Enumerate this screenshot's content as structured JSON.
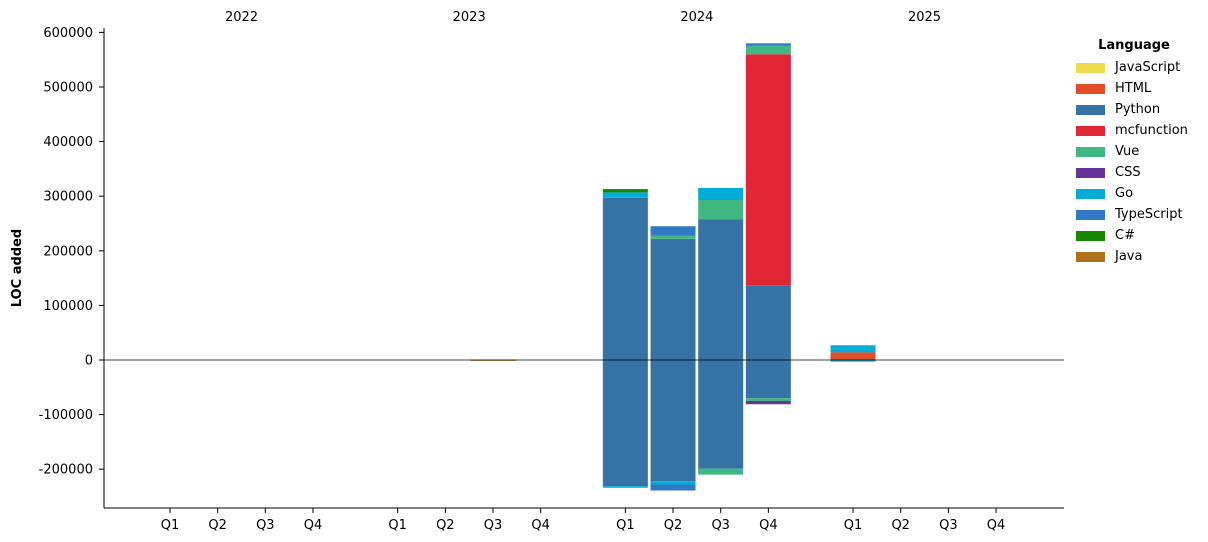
{
  "chart_data": {
    "type": "bar",
    "stacked": true,
    "ylabel": "LOC added",
    "ylim": [
      -270000,
      610000
    ],
    "yticks": [
      600000,
      500000,
      400000,
      300000,
      200000,
      100000,
      0,
      -100000,
      -200000
    ],
    "years": [
      "2022",
      "2023",
      "2024",
      "2025"
    ],
    "quarters": [
      "Q1",
      "Q2",
      "Q3",
      "Q4"
    ],
    "legend_title": "Language",
    "legend_position": "top-right, outside plot",
    "series": [
      {
        "name": "JavaScript",
        "color": "#f0db4f"
      },
      {
        "name": "HTML",
        "color": "#e34c26"
      },
      {
        "name": "Python",
        "color": "#3572a5"
      },
      {
        "name": "mcfunction",
        "color": "#e32636"
      },
      {
        "name": "Vue",
        "color": "#41b883"
      },
      {
        "name": "CSS",
        "color": "#663399"
      },
      {
        "name": "Go",
        "color": "#00add8"
      },
      {
        "name": "TypeScript",
        "color": "#3178c6"
      },
      {
        "name": "C#",
        "color": "#178600"
      },
      {
        "name": "Java",
        "color": "#b07219"
      }
    ],
    "bars": [
      {
        "year": "2023",
        "quarter": "Q3",
        "positive": [
          {
            "series": "Java",
            "value": 800
          }
        ],
        "negative": [
          {
            "series": "Java",
            "value": -800
          }
        ]
      },
      {
        "year": "2024",
        "quarter": "Q1",
        "positive": [
          {
            "series": "Python",
            "value": 297000
          },
          {
            "series": "Go",
            "value": 10000
          },
          {
            "series": "C#",
            "value": 6000
          }
        ],
        "negative": [
          {
            "series": "Python",
            "value": -231000
          },
          {
            "series": "Go",
            "value": -3000
          }
        ]
      },
      {
        "year": "2024",
        "quarter": "Q2",
        "positive": [
          {
            "series": "Python",
            "value": 222000
          },
          {
            "series": "Vue",
            "value": 6000
          },
          {
            "series": "TypeScript",
            "value": 17000
          }
        ],
        "negative": [
          {
            "series": "Python",
            "value": -222000
          },
          {
            "series": "Go",
            "value": -6000
          },
          {
            "series": "TypeScript",
            "value": -11000
          }
        ]
      },
      {
        "year": "2024",
        "quarter": "Q3",
        "positive": [
          {
            "series": "Python",
            "value": 258000
          },
          {
            "series": "Vue",
            "value": 35000
          },
          {
            "series": "Go",
            "value": 22000
          }
        ],
        "negative": [
          {
            "series": "Python",
            "value": -199000
          },
          {
            "series": "Vue",
            "value": -11000
          }
        ]
      },
      {
        "year": "2024",
        "quarter": "Q4",
        "positive": [
          {
            "series": "Python",
            "value": 137000
          },
          {
            "series": "mcfunction",
            "value": 423000
          },
          {
            "series": "Vue",
            "value": 16000
          },
          {
            "series": "TypeScript",
            "value": 4000
          }
        ],
        "negative": [
          {
            "series": "Python",
            "value": -70000
          },
          {
            "series": "Vue",
            "value": -5000
          },
          {
            "series": "CSS",
            "value": -6000
          }
        ]
      },
      {
        "year": "2025",
        "quarter": "Q1",
        "positive": [
          {
            "series": "HTML",
            "value": 14000
          },
          {
            "series": "Go",
            "value": 13000
          }
        ],
        "negative": [
          {
            "series": "Go",
            "value": -3000
          }
        ]
      }
    ]
  }
}
